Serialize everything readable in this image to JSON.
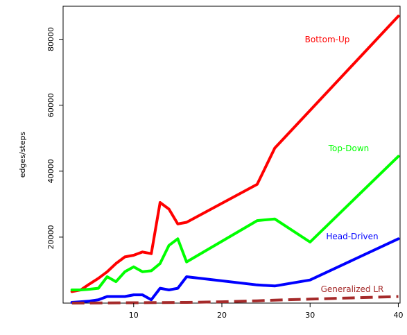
{
  "chart_data": {
    "type": "line",
    "ylabel": "edges/steps",
    "xlabel": "",
    "xlim": [
      2,
      40.2
    ],
    "ylim": [
      0,
      90000
    ],
    "x_ticks": [
      10,
      20,
      30,
      40
    ],
    "y_ticks": [
      20000,
      40000,
      60000,
      80000
    ],
    "x_tick_labels": [
      "10",
      "20",
      "30",
      "40"
    ],
    "y_tick_labels": [
      "20000",
      "40000",
      "60000",
      "80000"
    ],
    "grid": false,
    "legend": "inline labels at right",
    "series": [
      {
        "name": "Bottom-Up",
        "color": "#ff0000",
        "style": "solid",
        "x": [
          3,
          4,
          5,
          6,
          7,
          8,
          9,
          10,
          11,
          12,
          13,
          14,
          15,
          16,
          24,
          26,
          40
        ],
        "y": [
          3500,
          4000,
          5800,
          7500,
          9500,
          12000,
          14000,
          14500,
          15500,
          15000,
          30500,
          28500,
          24000,
          24500,
          36000,
          47000,
          87000
        ]
      },
      {
        "name": "Top-Down",
        "color": "#00ff00",
        "style": "solid",
        "x": [
          3,
          4,
          5,
          6,
          7,
          8,
          9,
          10,
          11,
          12,
          13,
          14,
          15,
          16,
          24,
          26,
          30,
          40
        ],
        "y": [
          4000,
          4000,
          4200,
          4500,
          8000,
          6500,
          9500,
          11000,
          9500,
          9800,
          12000,
          17500,
          19500,
          12500,
          25000,
          25500,
          18500,
          44500
        ]
      },
      {
        "name": "Head-Driven",
        "color": "#0000ff",
        "style": "solid",
        "x": [
          3,
          4,
          5,
          6,
          7,
          8,
          9,
          10,
          11,
          12,
          13,
          14,
          15,
          16,
          24,
          26,
          30,
          40
        ],
        "y": [
          200,
          400,
          600,
          1000,
          2000,
          2000,
          2000,
          2500,
          2500,
          1000,
          4500,
          4000,
          4500,
          8000,
          5500,
          5200,
          7000,
          19500
        ]
      },
      {
        "name": "Generalized LR",
        "color": "#a52a2a",
        "style": "dashed",
        "x": [
          3,
          10,
          16,
          20,
          24,
          26,
          30,
          40
        ],
        "y": [
          0,
          100,
          200,
          400,
          700,
          900,
          1200,
          2000
        ]
      }
    ]
  }
}
